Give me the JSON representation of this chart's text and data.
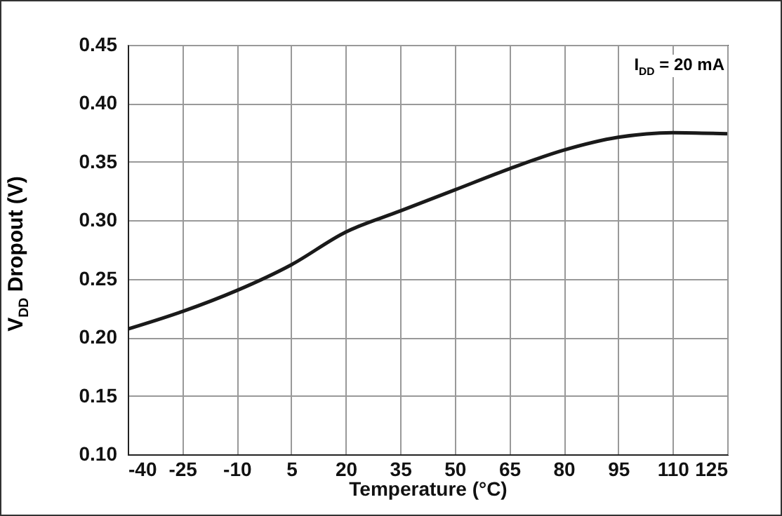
{
  "chart_data": {
    "type": "line",
    "xlabel": "Temperature (°C)",
    "ylabel": "V$_{DD}$ Dropout (V)",
    "annotations": [
      "I$_{DD}$ = 20 mA"
    ],
    "x": [
      -40,
      -25,
      -10,
      5,
      20,
      35,
      50,
      65,
      80,
      95,
      110,
      125
    ],
    "series": [
      {
        "color": "#1a1a1a",
        "values": [
          0.207,
          0.222,
          0.24,
          0.262,
          0.29,
          0.308,
          0.326,
          0.344,
          0.36,
          0.371,
          0.375,
          0.374
        ]
      }
    ],
    "xlim": [
      -40,
      125
    ],
    "xticks": [
      -40,
      -25,
      -10,
      5,
      20,
      35,
      50,
      65,
      80,
      95,
      110,
      125
    ],
    "ylim": [
      0.1,
      0.45
    ],
    "yticks": [
      {
        "value": 0.1,
        "label": "0.10"
      },
      0.15,
      {
        "value": 0.2,
        "label": "0.20"
      },
      0.25,
      {
        "value": 0.3,
        "label": "0.30"
      },
      0.35,
      {
        "value": 0.4,
        "label": "0.40"
      },
      0.45
    ],
    "grid": true,
    "marker": "none",
    "line_style": "solid"
  }
}
